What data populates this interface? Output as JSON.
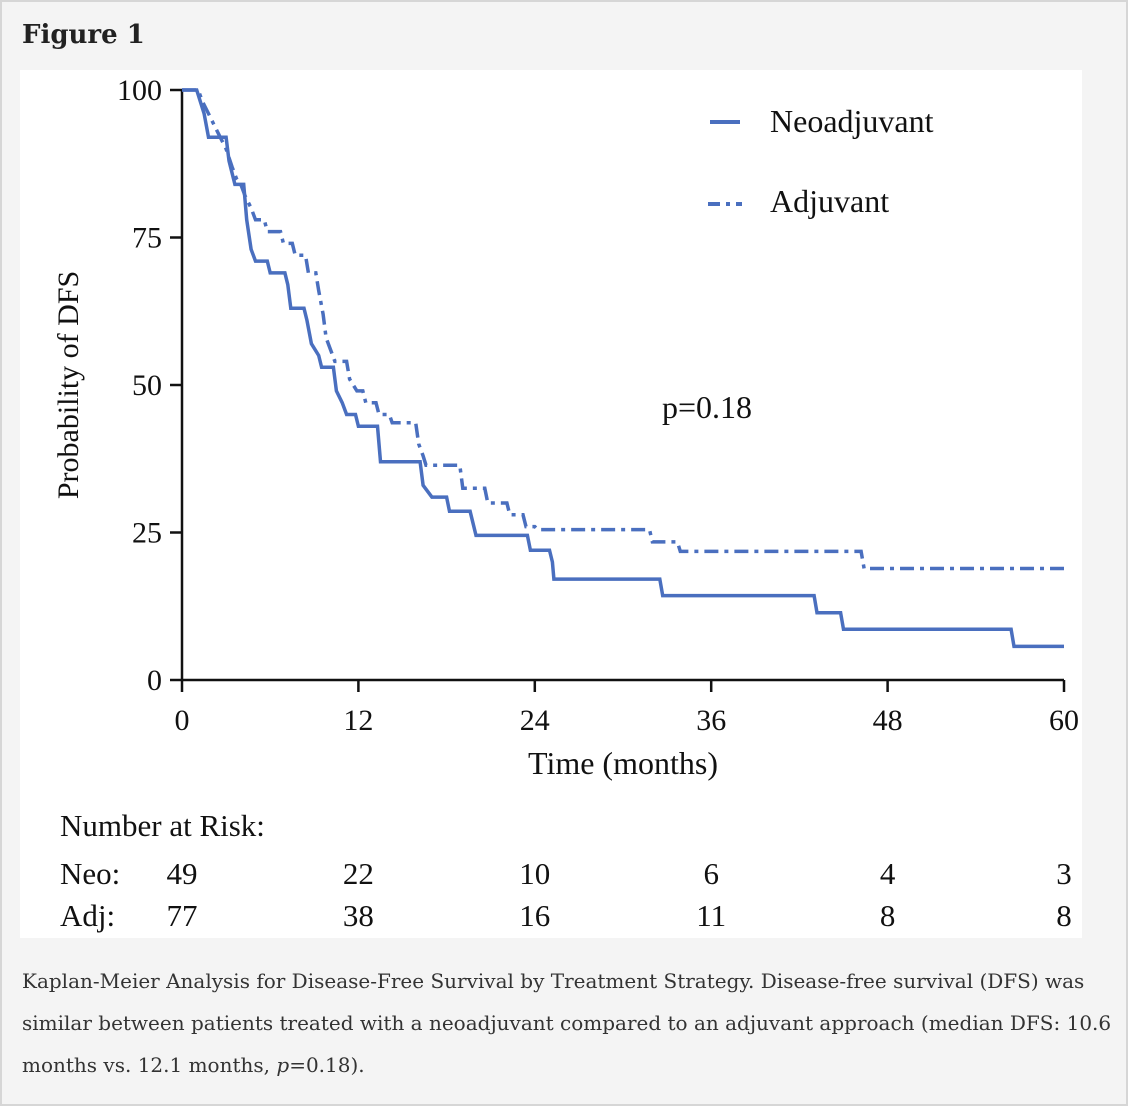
{
  "figure": {
    "title": "Figure 1",
    "caption_prefix": "Kaplan-Meier Analysis for Disease-Free Survival by Treatment Strategy. Disease-free survival (DFS) was similar between patients treated with a neoadjuvant compared to an adjuvant approach (median DFS: 10.6 months vs. 12.1 months, ",
    "caption_p": "p",
    "caption_suffix": "=0.18)."
  },
  "chart_data": {
    "type": "line",
    "subtype": "kaplan-meier step",
    "xlabel": "Time (months)",
    "ylabel": "Probability of DFS",
    "xlim": [
      0,
      60
    ],
    "ylim": [
      0,
      100
    ],
    "x_ticks": [
      "0",
      "12",
      "24",
      "36",
      "48",
      "60"
    ],
    "y_ticks": [
      "0",
      "25",
      "50",
      "75",
      "100"
    ],
    "legend": [
      "Neoadjuvant",
      "Adjuvant"
    ],
    "legend_position": "top-right",
    "annotation": "p=0.18",
    "series": [
      {
        "name": "Neoadjuvant",
        "style": "solid",
        "color": "#4a6fbf",
        "points": [
          [
            0,
            100
          ],
          [
            1.0,
            100
          ],
          [
            1.5,
            96
          ],
          [
            1.8,
            92
          ],
          [
            3.0,
            92
          ],
          [
            3.2,
            88
          ],
          [
            3.6,
            84
          ],
          [
            4.2,
            84
          ],
          [
            4.4,
            78
          ],
          [
            4.7,
            73
          ],
          [
            5.0,
            71
          ],
          [
            5.8,
            71
          ],
          [
            6.0,
            69
          ],
          [
            7.0,
            69
          ],
          [
            7.2,
            67
          ],
          [
            7.4,
            63
          ],
          [
            8.3,
            63
          ],
          [
            8.5,
            61
          ],
          [
            8.8,
            57
          ],
          [
            9.3,
            55
          ],
          [
            9.5,
            53
          ],
          [
            10.3,
            53
          ],
          [
            10.5,
            49
          ],
          [
            10.9,
            47
          ],
          [
            11.2,
            45
          ],
          [
            11.8,
            45
          ],
          [
            12.0,
            43
          ],
          [
            13.3,
            43
          ],
          [
            13.5,
            37
          ],
          [
            16.2,
            37
          ],
          [
            16.4,
            33
          ],
          [
            17.0,
            31
          ],
          [
            18.0,
            31
          ],
          [
            18.2,
            28.6
          ],
          [
            19.6,
            28.6
          ],
          [
            20.0,
            24.5
          ],
          [
            23.5,
            24.5
          ],
          [
            23.7,
            22
          ],
          [
            25.0,
            22
          ],
          [
            25.2,
            20
          ],
          [
            25.3,
            17.1
          ],
          [
            32.5,
            17.1
          ],
          [
            32.7,
            14.3
          ],
          [
            43.0,
            14.3
          ],
          [
            43.2,
            11.4
          ],
          [
            44.8,
            11.4
          ],
          [
            45.0,
            8.6
          ],
          [
            56.4,
            8.6
          ],
          [
            56.6,
            5.7
          ],
          [
            60,
            5.7
          ]
        ]
      },
      {
        "name": "Adjuvant",
        "style": "dash-dot",
        "color": "#4a6fbf",
        "points": [
          [
            0,
            100
          ],
          [
            1.1,
            100
          ],
          [
            1.4,
            98
          ],
          [
            1.8,
            96
          ],
          [
            2.2,
            94
          ],
          [
            2.6,
            92
          ],
          [
            3.0,
            90
          ],
          [
            3.4,
            87
          ],
          [
            3.7,
            85
          ],
          [
            4.0,
            84
          ],
          [
            4.3,
            82
          ],
          [
            4.7,
            80
          ],
          [
            5.0,
            78
          ],
          [
            5.6,
            78
          ],
          [
            5.8,
            76
          ],
          [
            6.7,
            76
          ],
          [
            6.9,
            74
          ],
          [
            7.5,
            74
          ],
          [
            7.7,
            72
          ],
          [
            8.4,
            72
          ],
          [
            8.6,
            69
          ],
          [
            9.1,
            69
          ],
          [
            9.3,
            66
          ],
          [
            9.6,
            62
          ],
          [
            9.8,
            58
          ],
          [
            10.1,
            56
          ],
          [
            10.4,
            54
          ],
          [
            11.2,
            54
          ],
          [
            11.4,
            51
          ],
          [
            11.9,
            49
          ],
          [
            12.3,
            49
          ],
          [
            12.5,
            47
          ],
          [
            13.2,
            47
          ],
          [
            13.4,
            45
          ],
          [
            14.1,
            45
          ],
          [
            14.3,
            43.6
          ],
          [
            15.9,
            43.6
          ],
          [
            16.1,
            40
          ],
          [
            16.4,
            38
          ],
          [
            16.6,
            36.4
          ],
          [
            18.9,
            36.4
          ],
          [
            19.1,
            32.5
          ],
          [
            20.6,
            32.5
          ],
          [
            20.8,
            30
          ],
          [
            22.1,
            30
          ],
          [
            22.3,
            28
          ],
          [
            23.2,
            28
          ],
          [
            23.4,
            26
          ],
          [
            24.0,
            26
          ],
          [
            24.2,
            25.5
          ],
          [
            31.8,
            25.5
          ],
          [
            32.0,
            23.4
          ],
          [
            33.7,
            23.4
          ],
          [
            33.9,
            21.8
          ],
          [
            46.2,
            21.8
          ],
          [
            46.4,
            18.9
          ],
          [
            60,
            18.9
          ]
        ]
      }
    ],
    "risk_table": {
      "heading": "Number at Risk:",
      "rows": [
        {
          "label": "Neo:",
          "values": [
            "49",
            "22",
            "10",
            "6",
            "4",
            "3"
          ]
        },
        {
          "label": "Adj:",
          "values": [
            "77",
            "38",
            "16",
            "11",
            "8",
            "8"
          ]
        }
      ]
    }
  }
}
